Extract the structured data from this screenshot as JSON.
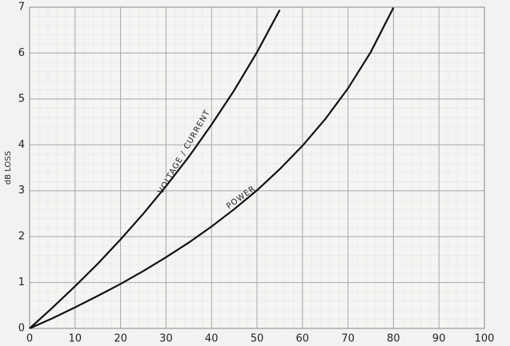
{
  "chart_data": {
    "type": "line",
    "y_label": "dB LOSS",
    "series": [
      {
        "name": "VOLTAGE / CURRENT",
        "color": "#111111",
        "x": [
          0,
          5,
          10,
          15,
          20,
          25,
          30,
          35,
          40,
          45,
          50,
          55
        ],
        "values": [
          0,
          0.45,
          0.92,
          1.41,
          1.94,
          2.5,
          3.1,
          3.74,
          4.44,
          5.19,
          6.02,
          6.94
        ]
      },
      {
        "name": "POWER",
        "color": "#111111",
        "x": [
          0,
          5,
          10,
          15,
          20,
          25,
          30,
          35,
          40,
          45,
          50,
          55,
          60,
          65,
          70,
          75,
          80
        ],
        "values": [
          0,
          0.22,
          0.46,
          0.71,
          0.97,
          1.25,
          1.55,
          1.87,
          2.22,
          2.6,
          3.01,
          3.47,
          3.98,
          4.56,
          5.23,
          6.02,
          6.99
        ]
      }
    ],
    "xlim": [
      0,
      100
    ],
    "ylim": [
      0,
      7
    ],
    "xticks": [
      0,
      10,
      20,
      30,
      40,
      50,
      60,
      70,
      80,
      90,
      100
    ],
    "yticks": [
      0,
      1,
      2,
      3,
      4,
      5,
      6,
      7
    ],
    "grid": true
  }
}
